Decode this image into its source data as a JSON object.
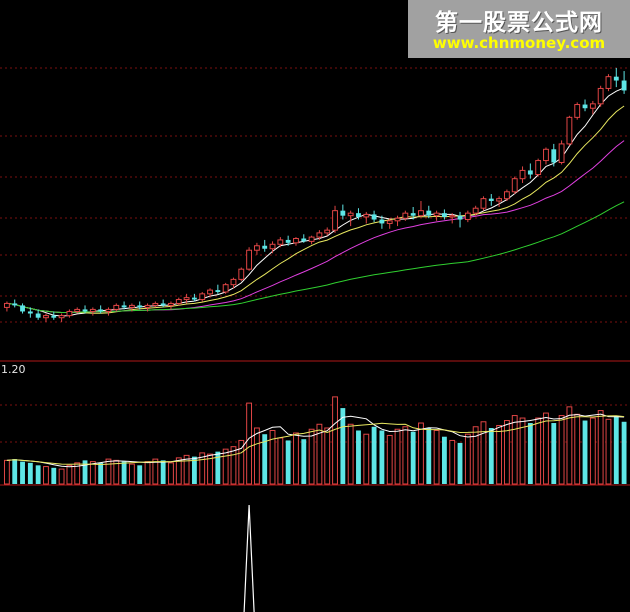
{
  "watermark": {
    "title": "第一股票公式网",
    "url": "www.chnmoney.com"
  },
  "volume_panel": {
    "scale_label": "1.20"
  },
  "colors": {
    "up": "#e04545",
    "down": "#5ee6e6",
    "ma_short": "#ffffff",
    "ma_mid": "#e8e860",
    "ma_long": "#e040e0",
    "ma_longest": "#30d030",
    "grid": "#7a1010",
    "signal": "#ffffff"
  },
  "chart_data": [
    {
      "type": "candlestick",
      "title": "",
      "series": [
        {
          "name": "",
          "kind": "ohlc"
        }
      ],
      "ohlc": [
        [
          1.0,
          1.03,
          0.98,
          1.02
        ],
        [
          1.02,
          1.04,
          1.0,
          1.01
        ],
        [
          1.01,
          1.02,
          0.97,
          0.98
        ],
        [
          0.98,
          1.0,
          0.95,
          0.97
        ],
        [
          0.97,
          0.99,
          0.94,
          0.95
        ],
        [
          0.95,
          0.97,
          0.93,
          0.96
        ],
        [
          0.96,
          0.98,
          0.94,
          0.95
        ],
        [
          0.95,
          0.97,
          0.93,
          0.96
        ],
        [
          0.96,
          0.99,
          0.95,
          0.98
        ],
        [
          0.98,
          1.0,
          0.97,
          0.99
        ],
        [
          0.99,
          1.01,
          0.97,
          0.98
        ],
        [
          0.98,
          1.0,
          0.96,
          0.99
        ],
        [
          0.99,
          1.01,
          0.97,
          0.98
        ],
        [
          0.98,
          1.0,
          0.96,
          0.99
        ],
        [
          0.99,
          1.02,
          0.98,
          1.01
        ],
        [
          1.01,
          1.03,
          0.99,
          1.0
        ],
        [
          1.0,
          1.02,
          0.98,
          1.01
        ],
        [
          1.01,
          1.03,
          0.99,
          1.0
        ],
        [
          1.0,
          1.02,
          0.98,
          1.01
        ],
        [
          1.01,
          1.03,
          1.0,
          1.02
        ],
        [
          1.02,
          1.04,
          1.0,
          1.01
        ],
        [
          1.01,
          1.03,
          0.99,
          1.02
        ],
        [
          1.02,
          1.05,
          1.01,
          1.04
        ],
        [
          1.04,
          1.07,
          1.02,
          1.05
        ],
        [
          1.05,
          1.07,
          1.03,
          1.04
        ],
        [
          1.04,
          1.08,
          1.03,
          1.07
        ],
        [
          1.07,
          1.1,
          1.05,
          1.09
        ],
        [
          1.09,
          1.12,
          1.07,
          1.08
        ],
        [
          1.08,
          1.13,
          1.07,
          1.12
        ],
        [
          1.12,
          1.16,
          1.1,
          1.15
        ],
        [
          1.15,
          1.22,
          1.14,
          1.21
        ],
        [
          1.21,
          1.35,
          1.2,
          1.33
        ],
        [
          1.33,
          1.38,
          1.3,
          1.36
        ],
        [
          1.36,
          1.4,
          1.32,
          1.34
        ],
        [
          1.34,
          1.39,
          1.31,
          1.37
        ],
        [
          1.37,
          1.42,
          1.35,
          1.4
        ],
        [
          1.4,
          1.43,
          1.36,
          1.38
        ],
        [
          1.38,
          1.42,
          1.36,
          1.41
        ],
        [
          1.41,
          1.44,
          1.38,
          1.39
        ],
        [
          1.39,
          1.43,
          1.37,
          1.42
        ],
        [
          1.42,
          1.47,
          1.4,
          1.45
        ],
        [
          1.45,
          1.49,
          1.43,
          1.47
        ],
        [
          1.47,
          1.66,
          1.45,
          1.62
        ],
        [
          1.62,
          1.67,
          1.55,
          1.58
        ],
        [
          1.58,
          1.62,
          1.5,
          1.6
        ],
        [
          1.6,
          1.64,
          1.55,
          1.57
        ],
        [
          1.57,
          1.61,
          1.52,
          1.59
        ],
        [
          1.59,
          1.62,
          1.53,
          1.55
        ],
        [
          1.55,
          1.58,
          1.48,
          1.52
        ],
        [
          1.52,
          1.56,
          1.48,
          1.54
        ],
        [
          1.54,
          1.58,
          1.5,
          1.56
        ],
        [
          1.56,
          1.62,
          1.54,
          1.6
        ],
        [
          1.6,
          1.65,
          1.55,
          1.58
        ],
        [
          1.58,
          1.7,
          1.57,
          1.62
        ],
        [
          1.62,
          1.66,
          1.56,
          1.58
        ],
        [
          1.58,
          1.62,
          1.54,
          1.6
        ],
        [
          1.6,
          1.63,
          1.55,
          1.57
        ],
        [
          1.57,
          1.6,
          1.52,
          1.58
        ],
        [
          1.58,
          1.61,
          1.49,
          1.55
        ],
        [
          1.55,
          1.62,
          1.53,
          1.6
        ],
        [
          1.6,
          1.66,
          1.58,
          1.64
        ],
        [
          1.64,
          1.74,
          1.62,
          1.72
        ],
        [
          1.72,
          1.76,
          1.66,
          1.7
        ],
        [
          1.7,
          1.74,
          1.65,
          1.72
        ],
        [
          1.72,
          1.8,
          1.7,
          1.78
        ],
        [
          1.78,
          1.92,
          1.76,
          1.9
        ],
        [
          1.9,
          2.02,
          1.86,
          1.98
        ],
        [
          1.98,
          2.05,
          1.9,
          1.94
        ],
        [
          1.94,
          2.1,
          1.92,
          2.08
        ],
        [
          2.08,
          2.22,
          2.04,
          2.2
        ],
        [
          2.2,
          2.26,
          2.02,
          2.06
        ],
        [
          2.06,
          2.3,
          2.04,
          2.26
        ],
        [
          2.26,
          2.6,
          2.24,
          2.58
        ],
        [
          2.58,
          2.78,
          2.55,
          2.75
        ],
        [
          2.75,
          2.82,
          2.66,
          2.7
        ],
        [
          2.7,
          2.8,
          2.62,
          2.76
        ],
        [
          2.76,
          3.02,
          2.72,
          2.98
        ],
        [
          2.98,
          3.2,
          2.94,
          3.16
        ],
        [
          3.16,
          3.3,
          3.0,
          3.1
        ],
        [
          3.1,
          3.25,
          2.9,
          2.95
        ]
      ],
      "ylim": [
        0.85,
        3.4
      ]
    },
    {
      "type": "bar",
      "title": "",
      "ylabel": "",
      "scale_label": "1.20",
      "values": [
        0.38,
        0.4,
        0.36,
        0.34,
        0.3,
        0.28,
        0.26,
        0.24,
        0.3,
        0.34,
        0.38,
        0.36,
        0.34,
        0.4,
        0.38,
        0.36,
        0.32,
        0.3,
        0.36,
        0.4,
        0.38,
        0.34,
        0.42,
        0.46,
        0.44,
        0.5,
        0.48,
        0.52,
        0.56,
        0.6,
        0.7,
        1.3,
        0.9,
        0.8,
        0.86,
        0.74,
        0.7,
        0.82,
        0.72,
        0.88,
        0.96,
        0.9,
        1.4,
        1.22,
        0.96,
        0.86,
        0.8,
        0.92,
        0.86,
        0.78,
        0.88,
        0.92,
        0.84,
        0.98,
        0.9,
        0.86,
        0.76,
        0.7,
        0.66,
        0.8,
        0.92,
        1.0,
        0.9,
        0.94,
        1.02,
        1.1,
        1.06,
        0.98,
        1.06,
        1.14,
        0.98,
        1.1,
        1.24,
        1.12,
        1.02,
        1.06,
        1.18,
        1.04,
        1.1,
        1.0
      ],
      "ylim": [
        0,
        1.35
      ]
    },
    {
      "type": "line",
      "title": "",
      "series": [
        {
          "name": "",
          "values": [
            0,
            0,
            0,
            0,
            0,
            0,
            0,
            0,
            0,
            0,
            0,
            0,
            0,
            0,
            0,
            0,
            0,
            0,
            0,
            0,
            0,
            0,
            0,
            0,
            0,
            0,
            0,
            0,
            0,
            0,
            0,
            1,
            0,
            0,
            0,
            0,
            0,
            0,
            0,
            0,
            0,
            0,
            0,
            0,
            0,
            0,
            0,
            0,
            0,
            0,
            0,
            0,
            0,
            0,
            0,
            0,
            0,
            0,
            0,
            0,
            0,
            0,
            0,
            0,
            0,
            0,
            0,
            0,
            0,
            0,
            0,
            0,
            0,
            0,
            0,
            0,
            0,
            0,
            0,
            0
          ]
        }
      ],
      "ylim": [
        0,
        1
      ]
    }
  ]
}
